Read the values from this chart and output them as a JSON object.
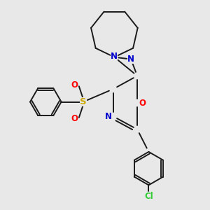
{
  "background_color": "#e8e8e8",
  "colors": {
    "N": "#0000cc",
    "O": "#ff0000",
    "S": "#ccaa00",
    "Cl": "#33cc33",
    "C": "#1a1a1a",
    "bond": "#1a1a1a"
  },
  "figsize": [
    3.0,
    3.0
  ],
  "dpi": 100,
  "lw": 1.4,
  "fs": 8.5
}
